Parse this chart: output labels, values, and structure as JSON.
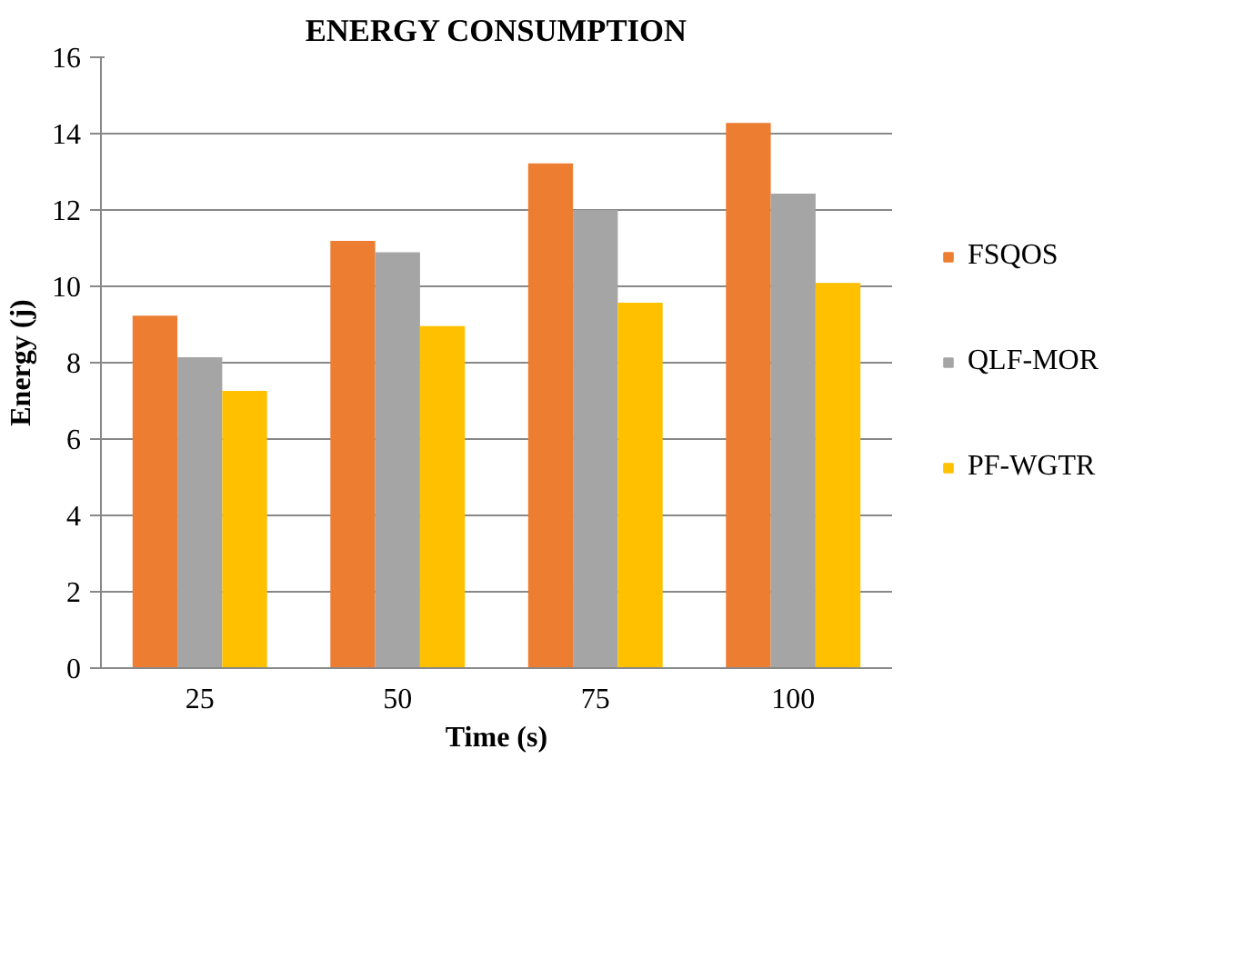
{
  "chart_data": {
    "type": "bar",
    "title": "ENERGY CONSUMPTION",
    "xlabel": "Time (s)",
    "ylabel": "Energy (j)",
    "categories": [
      "25",
      "50",
      "75",
      "100"
    ],
    "series": [
      {
        "name": "FSQOS",
        "color": "#ed7d31",
        "values": [
          9.23,
          11.19,
          13.22,
          14.28
        ]
      },
      {
        "name": "QLF-MOR",
        "color": "#a5a5a5",
        "values": [
          8.14,
          10.89,
          12.0,
          12.43
        ]
      },
      {
        "name": "PF-WGTR",
        "color": "#ffc000",
        "values": [
          7.26,
          8.96,
          9.57,
          10.09
        ]
      }
    ],
    "ylim": [
      0,
      16
    ],
    "yticks": [
      0,
      2,
      4,
      6,
      8,
      10,
      12,
      14,
      16
    ],
    "grid": "y",
    "legend": "right"
  }
}
